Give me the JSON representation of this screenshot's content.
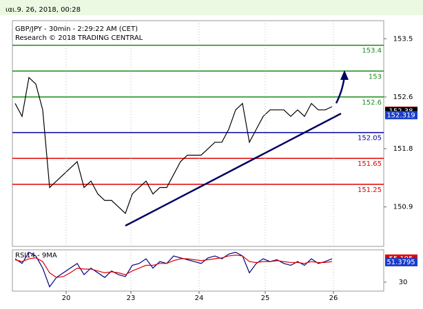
{
  "header": {
    "timestamp": "ιαι.9. 26, 2018, 00:28"
  },
  "chart_data": [
    {
      "type": "line",
      "title": "GBP/JPY - 30min - 2:29:22 AM (CET)",
      "subtitle": "Research © 2018 TRADING CENTRAL",
      "xlim": [
        -0.4,
        53.5
      ],
      "xticks": [
        {
          "value": 7.4,
          "label": "20"
        },
        {
          "value": 16.8,
          "label": "23"
        },
        {
          "value": 26.7,
          "label": "24"
        },
        {
          "value": 36.3,
          "label": "25"
        },
        {
          "value": 46.2,
          "label": "26"
        }
      ],
      "ylim": [
        150.29,
        153.78
      ],
      "yticks": [
        150.9,
        151.8,
        152.6,
        153.5
      ],
      "series": [
        {
          "color": "#000000",
          "values": [
            152.5,
            152.3,
            152.9,
            152.8,
            152.4,
            151.2,
            151.3,
            151.4,
            151.5,
            151.6,
            151.2,
            151.3,
            151.1,
            151.0,
            151.0,
            150.9,
            150.8,
            151.1,
            151.2,
            151.3,
            151.1,
            151.2,
            151.2,
            151.4,
            151.6,
            151.7,
            151.7,
            151.7,
            151.8,
            151.9,
            151.9,
            152.1,
            152.4,
            152.5,
            151.9,
            152.1,
            152.3,
            152.4,
            152.4,
            152.4,
            152.3,
            152.4,
            152.3,
            152.5,
            152.4,
            152.4,
            152.45
          ]
        }
      ],
      "reference_lines": [
        {
          "value": 153.4,
          "color": "#1a8a1a"
        },
        {
          "value": 153,
          "color": "#1a8a1a"
        },
        {
          "value": 152.6,
          "color": "#1a8a1a"
        },
        {
          "value": 152.05,
          "color": "#0000a0"
        },
        {
          "value": 151.65,
          "color": "#e00000"
        },
        {
          "value": 151.25,
          "color": "#e00000"
        }
      ],
      "price_tags": [
        {
          "value": 152.387,
          "color": "#e00000"
        },
        {
          "value": 152.38,
          "color": "#000000"
        },
        {
          "value": 152.319,
          "color": "#1a3cc8"
        }
      ]
    },
    {
      "type": "line",
      "title": "RSI14 - 9MA",
      "ylim": [
        20.4,
        64.6
      ],
      "yticks": [
        30
      ],
      "series": [
        {
          "color": "#000080",
          "values": [
            55,
            50,
            62,
            58,
            45,
            25,
            35,
            40,
            45,
            50,
            38,
            45,
            40,
            35,
            42,
            38,
            36,
            48,
            50,
            55,
            45,
            52,
            50,
            58,
            56,
            54,
            52,
            50,
            56,
            58,
            55,
            60,
            62,
            58,
            40,
            50,
            55,
            52,
            54,
            50,
            48,
            52,
            48,
            55,
            50,
            52,
            55
          ]
        },
        {
          "color": "#e00000",
          "values": [
            54,
            52,
            55,
            56,
            52,
            40,
            35,
            36,
            40,
            45,
            44,
            44,
            42,
            40,
            41,
            40,
            38,
            42,
            45,
            48,
            48,
            50,
            50,
            53,
            55,
            55,
            54,
            53,
            54,
            55,
            56,
            58,
            59,
            58,
            52,
            51,
            52,
            52,
            53,
            52,
            51,
            51,
            50,
            52,
            51,
            51,
            52
          ]
        }
      ],
      "price_tags": [
        {
          "value": 55.195,
          "color": "#e00000"
        },
        {
          "value": 51.3795,
          "color": "#1a3cc8"
        }
      ]
    }
  ]
}
